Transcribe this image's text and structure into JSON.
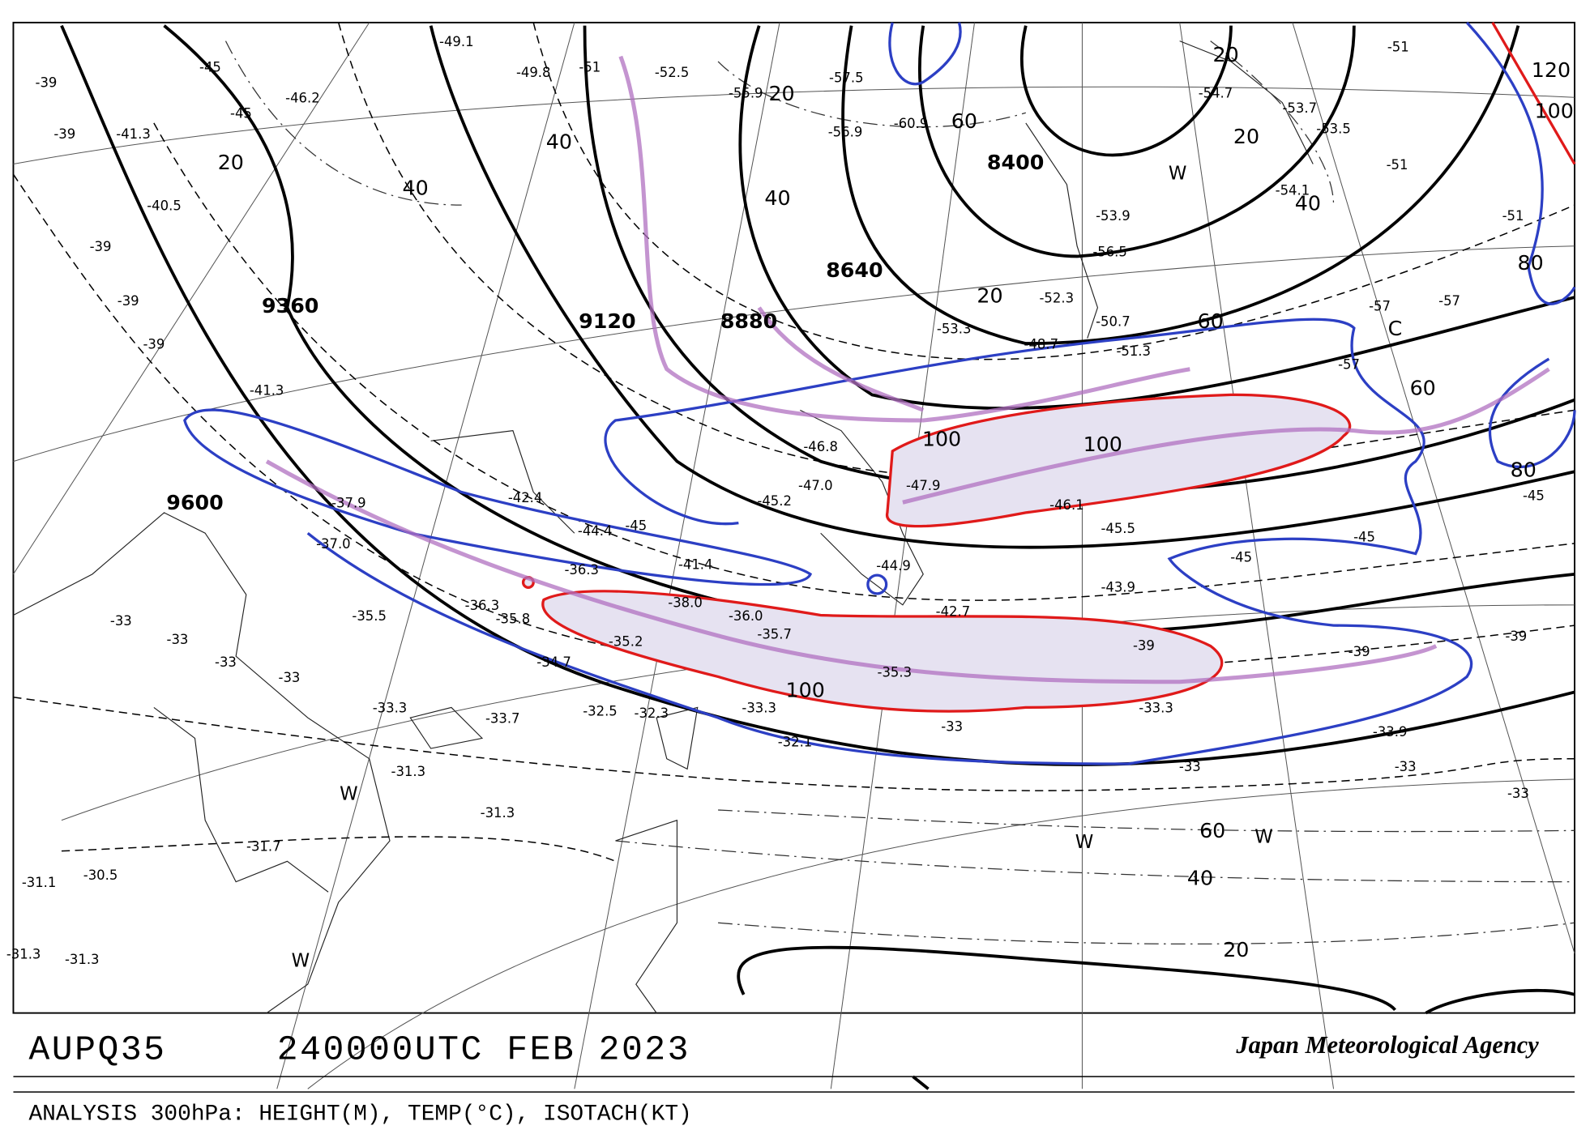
{
  "map": {
    "code": "AUPQ35",
    "time": "240000UTC FEB 2023",
    "agency": "Japan Meteorological Agency",
    "caption": "ANALYSIS 300hPa: HEIGHT(M), TEMP(°C), ISOTACH(KT)",
    "height_labels": [
      "9600",
      "9360",
      "9120",
      "8880",
      "8640",
      "8400"
    ],
    "isotach_labels": [
      "20",
      "40",
      "20",
      "40",
      "60",
      "40",
      "20",
      "20",
      "20",
      "40",
      "60",
      "60",
      "80",
      "80",
      "100",
      "100",
      "100",
      "120",
      "100",
      "60",
      "40",
      "20"
    ],
    "wind_labels": [
      "W",
      "W",
      "W",
      "W",
      "W"
    ],
    "cold_label": "C",
    "temperature_labels": [
      "-39",
      "-39",
      "-39",
      "-39",
      "-39",
      "-41.3",
      "-40.5",
      "-46.2",
      "-45",
      "-45",
      "-49.1",
      "-49.8",
      "-52.5",
      "-55.9",
      "-57.5",
      "-60.9",
      "-56.9",
      "-54.7",
      "-53.7",
      "-53.5",
      "-54.1",
      "-56.5",
      "-53.9",
      "-52.3",
      "-53.3",
      "-48.7",
      "-51.3",
      "-50.7",
      "-41.3",
      "-37.9",
      "-37.0",
      "-35.5",
      "-36.3",
      "-35.8",
      "-35.2",
      "-34.7",
      "-33.3",
      "-33.7",
      "-32.5",
      "-32.3",
      "-33.3",
      "-32.1",
      "-35.3",
      "-35.7",
      "-36.0",
      "-38.0",
      "-36.3",
      "-41.4",
      "-42.4",
      "-44.4",
      "-46.8",
      "-47.0",
      "-45.2",
      "-47.9",
      "-46.1",
      "-45.5",
      "-43.9",
      "-42.7",
      "-44.9",
      "-33.9",
      "-33.3",
      "-31.3",
      "-31.3",
      "-31.7",
      "-30.5",
      "-31.1",
      "-31.3",
      "-31.3",
      "-33",
      "-33",
      "-33",
      "-33",
      "-33",
      "-33",
      "-33",
      "-33",
      "-39",
      "-39",
      "-39",
      "-45",
      "-45",
      "-45",
      "-45",
      "-51",
      "-51",
      "-51",
      "-51",
      "-57",
      "-57",
      "-57"
    ]
  }
}
